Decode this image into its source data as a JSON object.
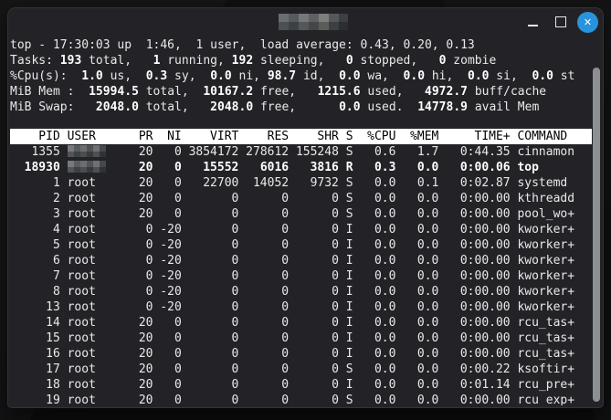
{
  "window": {
    "title_redacted": true,
    "icons": {
      "minimize": "–",
      "maximize": "□",
      "close": "✕"
    }
  },
  "terminal": {
    "summary_lines": [
      {
        "segments": [
          {
            "t": "top - 17:30:03 up  1:46,  1 user,  load average: 0.43, 0.20, 0.13",
            "b": false
          }
        ]
      },
      {
        "segments": [
          {
            "t": "Tasks: ",
            "b": false
          },
          {
            "t": "193",
            "b": true
          },
          {
            "t": " total,   ",
            "b": false
          },
          {
            "t": "1",
            "b": true
          },
          {
            "t": " running, ",
            "b": false
          },
          {
            "t": "192",
            "b": true
          },
          {
            "t": " sleeping,   ",
            "b": false
          },
          {
            "t": "0",
            "b": true
          },
          {
            "t": " stopped,   ",
            "b": false
          },
          {
            "t": "0",
            "b": true
          },
          {
            "t": " zombie",
            "b": false
          }
        ]
      },
      {
        "segments": [
          {
            "t": "%Cpu(s):  ",
            "b": false
          },
          {
            "t": "1.0",
            "b": true
          },
          {
            "t": " us,  ",
            "b": false
          },
          {
            "t": "0.3",
            "b": true
          },
          {
            "t": " sy,  ",
            "b": false
          },
          {
            "t": "0.0",
            "b": true
          },
          {
            "t": " ni, ",
            "b": false
          },
          {
            "t": "98.7",
            "b": true
          },
          {
            "t": " id,  ",
            "b": false
          },
          {
            "t": "0.0",
            "b": true
          },
          {
            "t": " wa,  ",
            "b": false
          },
          {
            "t": "0.0",
            "b": true
          },
          {
            "t": " hi,  ",
            "b": false
          },
          {
            "t": "0.0",
            "b": true
          },
          {
            "t": " si,  ",
            "b": false
          },
          {
            "t": "0.0",
            "b": true
          },
          {
            "t": " st",
            "b": false
          }
        ]
      },
      {
        "segments": [
          {
            "t": "MiB Mem : ",
            "b": false
          },
          {
            "t": " 15994.5",
            "b": true
          },
          {
            "t": " total, ",
            "b": false
          },
          {
            "t": " 10167.2",
            "b": true
          },
          {
            "t": " free,  ",
            "b": false
          },
          {
            "t": " 1215.6",
            "b": true
          },
          {
            "t": " used,  ",
            "b": false
          },
          {
            "t": " 4972.7",
            "b": true
          },
          {
            "t": " buff/cache",
            "b": false
          }
        ]
      },
      {
        "segments": [
          {
            "t": "MiB Swap: ",
            "b": false
          },
          {
            "t": "  2048.0",
            "b": true
          },
          {
            "t": " total, ",
            "b": false
          },
          {
            "t": "  2048.0",
            "b": true
          },
          {
            "t": " free,  ",
            "b": false
          },
          {
            "t": "    0.0",
            "b": true
          },
          {
            "t": " used. ",
            "b": false
          },
          {
            "t": " 14778.9",
            "b": true
          },
          {
            "t": " avail Mem",
            "b": false
          }
        ]
      }
    ],
    "table": {
      "columns": [
        "PID",
        "USER",
        "PR",
        "NI",
        "VIRT",
        "RES",
        "SHR",
        "S",
        "%CPU",
        "%MEM",
        "TIME+",
        "COMMAND"
      ],
      "rows": [
        {
          "cells": [
            "1355",
            "",
            "20",
            "0",
            "3854172",
            "278612",
            "155248",
            "S",
            "0.6",
            "1.7",
            "0:44.35",
            "cinnamon"
          ],
          "bold": false,
          "user_redacted": true
        },
        {
          "cells": [
            "18930",
            "",
            "20",
            "0",
            "15552",
            "6016",
            "3816",
            "R",
            "0.3",
            "0.0",
            "0:00.06",
            "top"
          ],
          "bold": true,
          "user_redacted": true
        },
        {
          "cells": [
            "1",
            "root",
            "20",
            "0",
            "22700",
            "14052",
            "9732",
            "S",
            "0.0",
            "0.1",
            "0:02.87",
            "systemd"
          ],
          "bold": false,
          "user_redacted": false
        },
        {
          "cells": [
            "2",
            "root",
            "20",
            "0",
            "0",
            "0",
            "0",
            "S",
            "0.0",
            "0.0",
            "0:00.00",
            "kthreadd"
          ],
          "bold": false,
          "user_redacted": false
        },
        {
          "cells": [
            "3",
            "root",
            "20",
            "0",
            "0",
            "0",
            "0",
            "S",
            "0.0",
            "0.0",
            "0:00.00",
            "pool_wo+"
          ],
          "bold": false,
          "user_redacted": false
        },
        {
          "cells": [
            "4",
            "root",
            "0",
            "-20",
            "0",
            "0",
            "0",
            "I",
            "0.0",
            "0.0",
            "0:00.00",
            "kworker+"
          ],
          "bold": false,
          "user_redacted": false
        },
        {
          "cells": [
            "5",
            "root",
            "0",
            "-20",
            "0",
            "0",
            "0",
            "I",
            "0.0",
            "0.0",
            "0:00.00",
            "kworker+"
          ],
          "bold": false,
          "user_redacted": false
        },
        {
          "cells": [
            "6",
            "root",
            "0",
            "-20",
            "0",
            "0",
            "0",
            "I",
            "0.0",
            "0.0",
            "0:00.00",
            "kworker+"
          ],
          "bold": false,
          "user_redacted": false
        },
        {
          "cells": [
            "7",
            "root",
            "0",
            "-20",
            "0",
            "0",
            "0",
            "I",
            "0.0",
            "0.0",
            "0:00.00",
            "kworker+"
          ],
          "bold": false,
          "user_redacted": false
        },
        {
          "cells": [
            "8",
            "root",
            "0",
            "-20",
            "0",
            "0",
            "0",
            "I",
            "0.0",
            "0.0",
            "0:00.00",
            "kworker+"
          ],
          "bold": false,
          "user_redacted": false
        },
        {
          "cells": [
            "13",
            "root",
            "0",
            "-20",
            "0",
            "0",
            "0",
            "I",
            "0.0",
            "0.0",
            "0:00.00",
            "kworker+"
          ],
          "bold": false,
          "user_redacted": false
        },
        {
          "cells": [
            "14",
            "root",
            "20",
            "0",
            "0",
            "0",
            "0",
            "I",
            "0.0",
            "0.0",
            "0:00.00",
            "rcu_tas+"
          ],
          "bold": false,
          "user_redacted": false
        },
        {
          "cells": [
            "15",
            "root",
            "20",
            "0",
            "0",
            "0",
            "0",
            "I",
            "0.0",
            "0.0",
            "0:00.00",
            "rcu_tas+"
          ],
          "bold": false,
          "user_redacted": false
        },
        {
          "cells": [
            "16",
            "root",
            "20",
            "0",
            "0",
            "0",
            "0",
            "I",
            "0.0",
            "0.0",
            "0:00.00",
            "rcu_tas+"
          ],
          "bold": false,
          "user_redacted": false
        },
        {
          "cells": [
            "17",
            "root",
            "20",
            "0",
            "0",
            "0",
            "0",
            "S",
            "0.0",
            "0.0",
            "0:00.22",
            "ksoftir+"
          ],
          "bold": false,
          "user_redacted": false
        },
        {
          "cells": [
            "18",
            "root",
            "20",
            "0",
            "0",
            "0",
            "0",
            "I",
            "0.0",
            "0.0",
            "0:01.14",
            "rcu_pre+"
          ],
          "bold": false,
          "user_redacted": false
        },
        {
          "cells": [
            "19",
            "root",
            "20",
            "0",
            "0",
            "0",
            "0",
            "S",
            "0.0",
            "0.0",
            "0:00.00",
            "rcu_exp+"
          ],
          "bold": false,
          "user_redacted": false
        }
      ]
    }
  }
}
